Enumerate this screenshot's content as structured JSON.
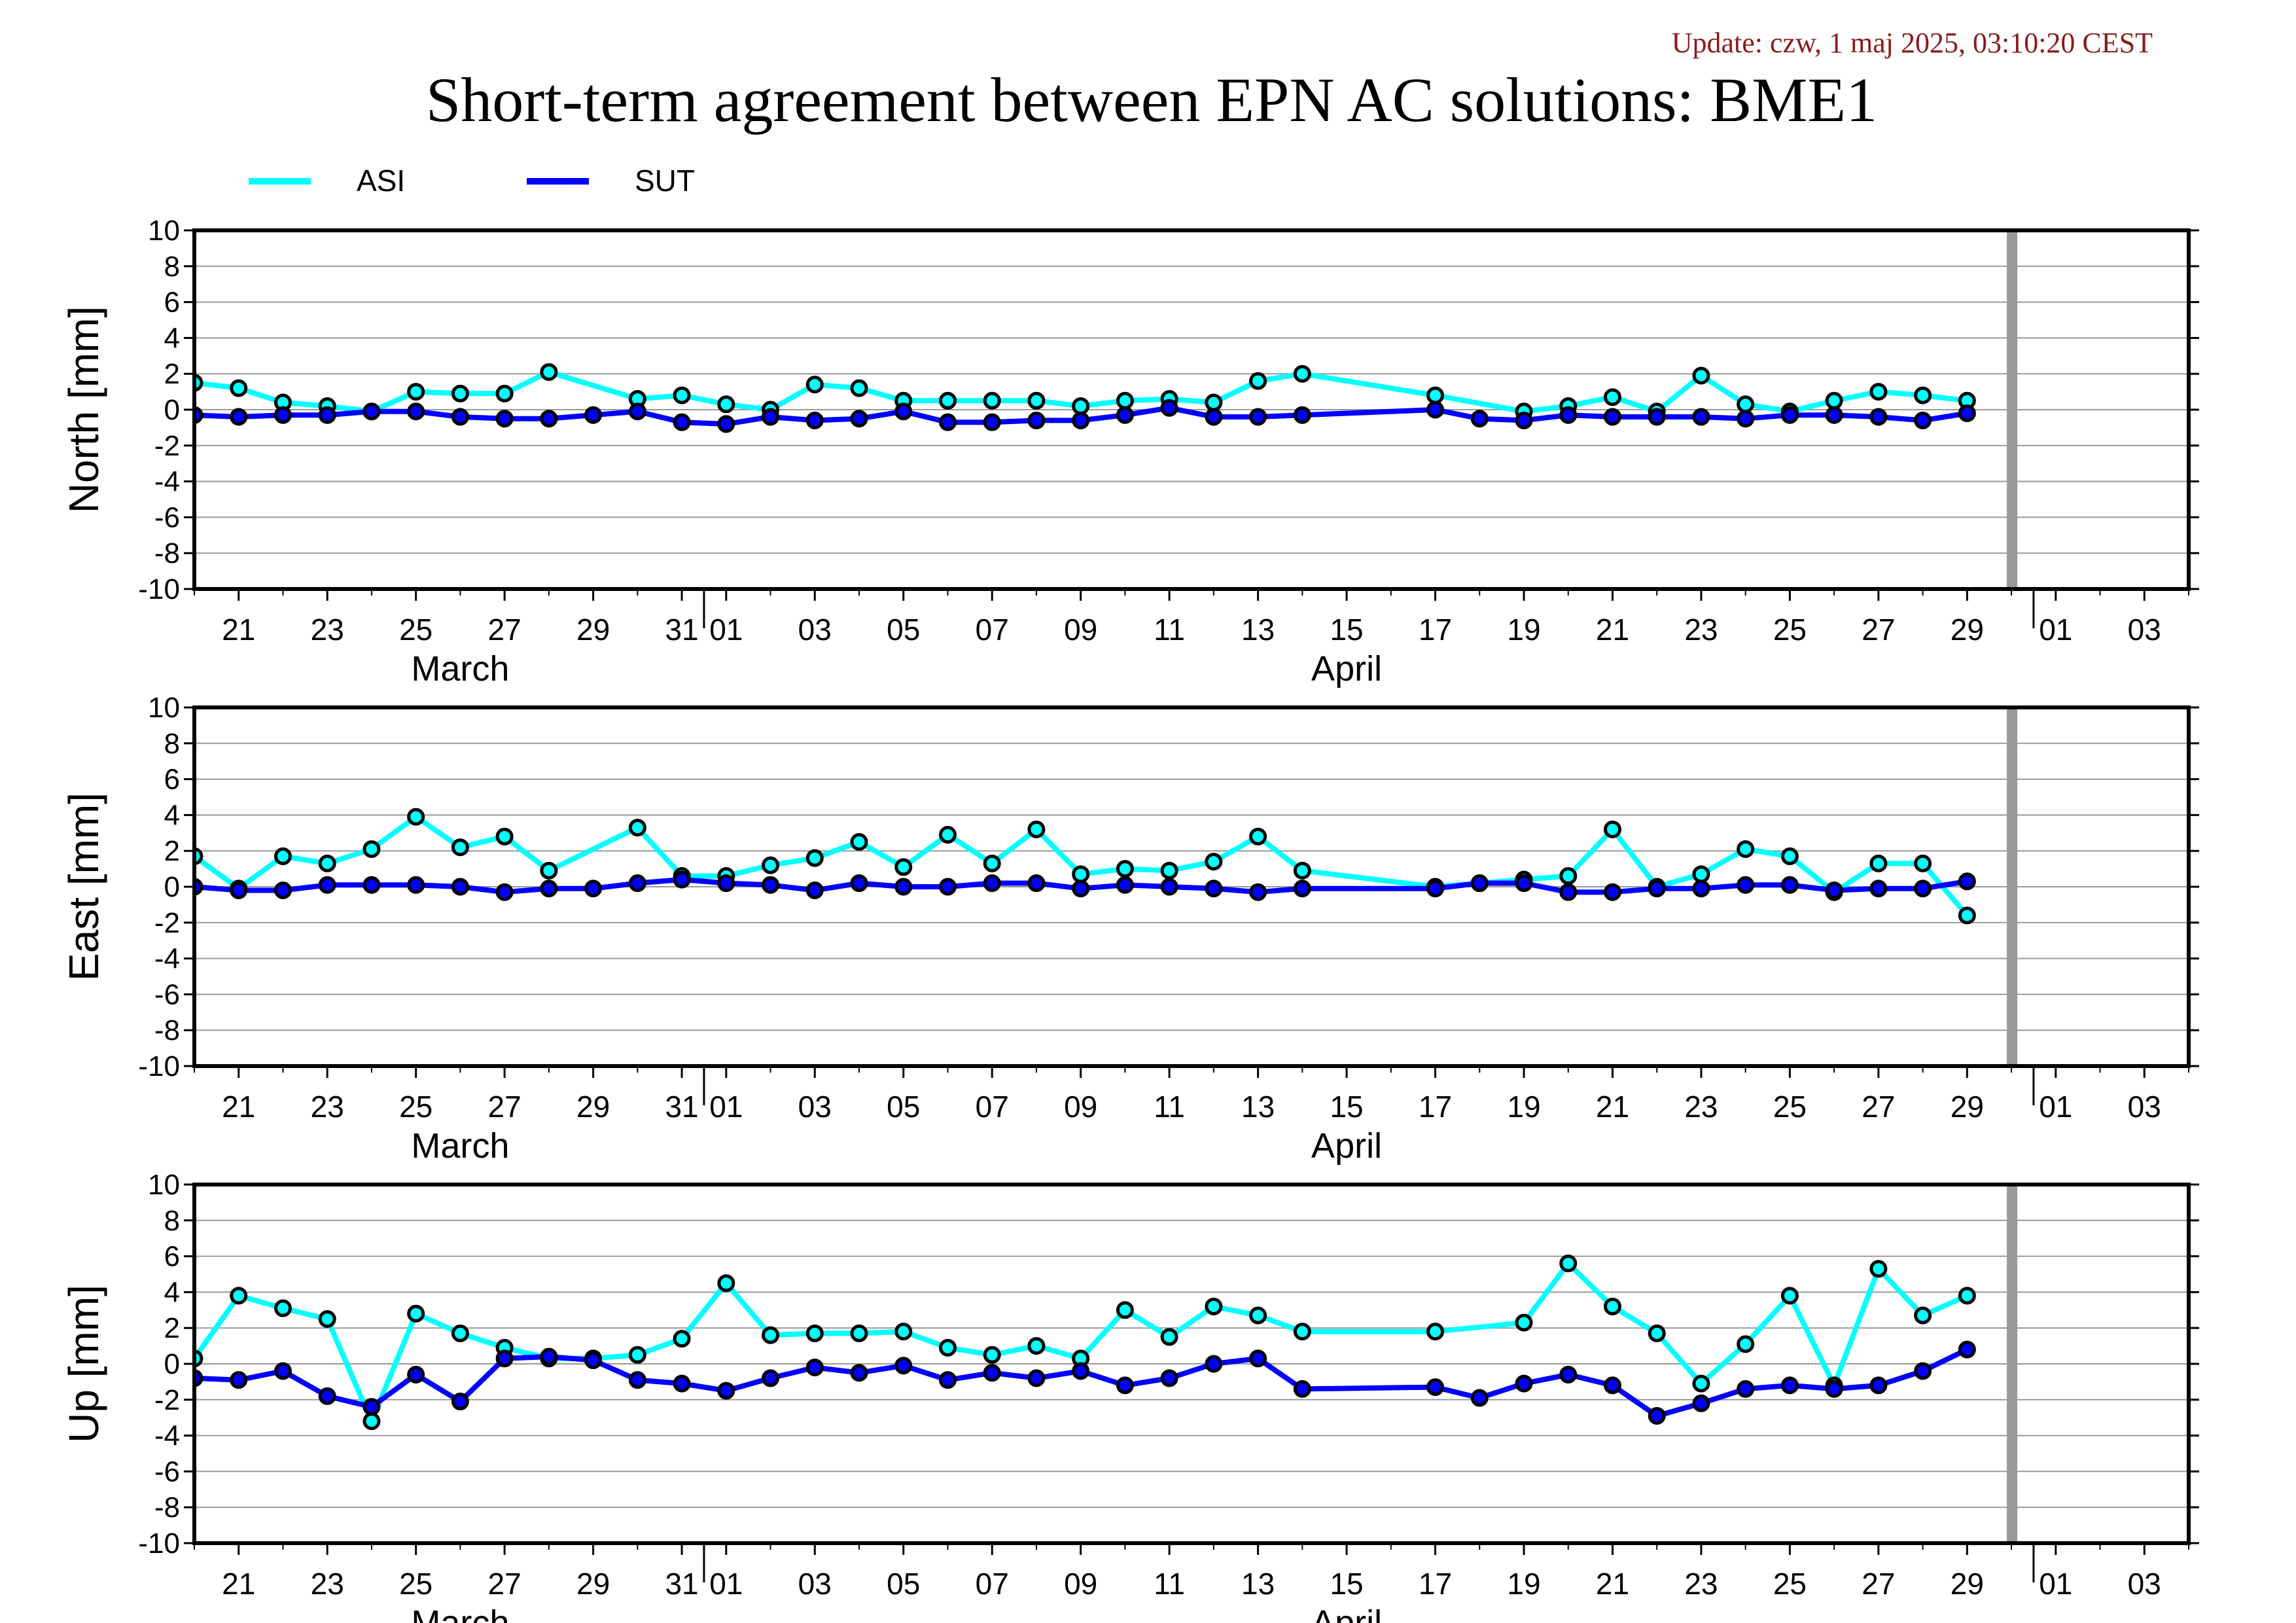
{
  "update_text": "Update: czw, 1 maj 2025, 03:10:20 CEST",
  "title": "Short-term agreement between EPN AC solutions: BME1",
  "legend": [
    {
      "name": "ASI",
      "color": "#00FFFF"
    },
    {
      "name": "SUT",
      "color": "#0000FF"
    }
  ],
  "colors": {
    "marker_edge": "#000000",
    "gap_bar": "#999999",
    "grid": "#999999"
  },
  "x_axis": {
    "tick_labels": [
      "21",
      "23",
      "25",
      "27",
      "29",
      "31",
      "01",
      "03",
      "05",
      "07",
      "09",
      "11",
      "13",
      "15",
      "17",
      "19",
      "21",
      "23",
      "25",
      "27",
      "29",
      "01",
      "03"
    ],
    "month_labels": [
      "March",
      "April"
    ]
  },
  "chart_data": [
    {
      "type": "line",
      "ylabel": "North [mm]",
      "ylim": [
        -10,
        10
      ],
      "yticks": [
        "10",
        "8",
        "6",
        "4",
        "2",
        "0",
        "-2",
        "-4",
        "-6",
        "-8",
        "-10"
      ],
      "xlim": [
        "2025-03-20",
        "2025-05-04"
      ],
      "grid": true,
      "series": [
        {
          "name": "ASI",
          "x": [
            "2025-03-20",
            "2025-03-21",
            "2025-03-22",
            "2025-03-23",
            "2025-03-24",
            "2025-03-25",
            "2025-03-26",
            "2025-03-27",
            "2025-03-28",
            "2025-03-30",
            "2025-03-31",
            "2025-04-01",
            "2025-04-02",
            "2025-04-03",
            "2025-04-04",
            "2025-04-05",
            "2025-04-06",
            "2025-04-07",
            "2025-04-08",
            "2025-04-09",
            "2025-04-10",
            "2025-04-11",
            "2025-04-12",
            "2025-04-13",
            "2025-04-14",
            "2025-04-17",
            "2025-04-19",
            "2025-04-20",
            "2025-04-21",
            "2025-04-22",
            "2025-04-23",
            "2025-04-24",
            "2025-04-25",
            "2025-04-26",
            "2025-04-27",
            "2025-04-28",
            "2025-04-29"
          ],
          "values": [
            1.5,
            1.2,
            0.4,
            0.2,
            -0.1,
            1.0,
            0.9,
            0.9,
            2.1,
            0.6,
            0.8,
            0.3,
            0.0,
            1.4,
            1.2,
            0.5,
            0.5,
            0.5,
            0.5,
            0.2,
            0.5,
            0.6,
            0.4,
            1.6,
            2.0,
            0.8,
            -0.1,
            0.2,
            0.7,
            -0.1,
            1.9,
            0.3,
            -0.1,
            0.5,
            1.0,
            0.8,
            0.5
          ]
        },
        {
          "name": "SUT",
          "x": [
            "2025-03-20",
            "2025-03-21",
            "2025-03-22",
            "2025-03-23",
            "2025-03-24",
            "2025-03-25",
            "2025-03-26",
            "2025-03-27",
            "2025-03-28",
            "2025-03-29",
            "2025-03-30",
            "2025-03-31",
            "2025-04-01",
            "2025-04-02",
            "2025-04-03",
            "2025-04-04",
            "2025-04-05",
            "2025-04-06",
            "2025-04-07",
            "2025-04-08",
            "2025-04-09",
            "2025-04-10",
            "2025-04-11",
            "2025-04-12",
            "2025-04-13",
            "2025-04-14",
            "2025-04-17",
            "2025-04-18",
            "2025-04-19",
            "2025-04-20",
            "2025-04-21",
            "2025-04-22",
            "2025-04-23",
            "2025-04-24",
            "2025-04-25",
            "2025-04-26",
            "2025-04-27",
            "2025-04-28",
            "2025-04-29"
          ],
          "values": [
            -0.3,
            -0.4,
            -0.3,
            -0.3,
            -0.1,
            -0.1,
            -0.4,
            -0.5,
            -0.5,
            -0.3,
            -0.1,
            -0.7,
            -0.8,
            -0.4,
            -0.6,
            -0.5,
            -0.1,
            -0.7,
            -0.7,
            -0.6,
            -0.6,
            -0.3,
            0.1,
            -0.4,
            -0.4,
            -0.3,
            0.0,
            -0.5,
            -0.6,
            -0.3,
            -0.4,
            -0.4,
            -0.4,
            -0.5,
            -0.3,
            -0.3,
            -0.4,
            -0.6,
            -0.2
          ]
        }
      ]
    },
    {
      "type": "line",
      "ylabel": "East [mm]",
      "ylim": [
        -10,
        10
      ],
      "yticks": [
        "10",
        "8",
        "6",
        "4",
        "2",
        "0",
        "-2",
        "-4",
        "-6",
        "-8",
        "-10"
      ],
      "xlim": [
        "2025-03-20",
        "2025-05-04"
      ],
      "grid": true,
      "series": [
        {
          "name": "ASI",
          "x": [
            "2025-03-20",
            "2025-03-21",
            "2025-03-22",
            "2025-03-23",
            "2025-03-24",
            "2025-03-25",
            "2025-03-26",
            "2025-03-27",
            "2025-03-28",
            "2025-03-30",
            "2025-03-31",
            "2025-04-01",
            "2025-04-02",
            "2025-04-03",
            "2025-04-04",
            "2025-04-05",
            "2025-04-06",
            "2025-04-07",
            "2025-04-08",
            "2025-04-09",
            "2025-04-10",
            "2025-04-11",
            "2025-04-12",
            "2025-04-13",
            "2025-04-14",
            "2025-04-17",
            "2025-04-18",
            "2025-04-19",
            "2025-04-20",
            "2025-04-21",
            "2025-04-22",
            "2025-04-23",
            "2025-04-24",
            "2025-04-25",
            "2025-04-26",
            "2025-04-27",
            "2025-04-28",
            "2025-04-29"
          ],
          "values": [
            1.7,
            -0.1,
            1.7,
            1.3,
            2.1,
            3.9,
            2.2,
            2.8,
            0.9,
            3.3,
            0.6,
            0.6,
            1.2,
            1.6,
            2.5,
            1.1,
            2.9,
            1.3,
            3.2,
            0.7,
            1.0,
            0.9,
            1.4,
            2.8,
            0.9,
            0.0,
            0.2,
            0.4,
            0.6,
            3.2,
            0.0,
            0.7,
            2.1,
            1.7,
            -0.3,
            1.3,
            1.3,
            -1.6
          ]
        },
        {
          "name": "SUT",
          "x": [
            "2025-03-20",
            "2025-03-21",
            "2025-03-22",
            "2025-03-23",
            "2025-03-24",
            "2025-03-25",
            "2025-03-26",
            "2025-03-27",
            "2025-03-28",
            "2025-03-29",
            "2025-03-30",
            "2025-03-31",
            "2025-04-01",
            "2025-04-02",
            "2025-04-03",
            "2025-04-04",
            "2025-04-05",
            "2025-04-06",
            "2025-04-07",
            "2025-04-08",
            "2025-04-09",
            "2025-04-10",
            "2025-04-11",
            "2025-04-12",
            "2025-04-13",
            "2025-04-14",
            "2025-04-17",
            "2025-04-18",
            "2025-04-19",
            "2025-04-20",
            "2025-04-21",
            "2025-04-22",
            "2025-04-23",
            "2025-04-24",
            "2025-04-25",
            "2025-04-26",
            "2025-04-27",
            "2025-04-28",
            "2025-04-29"
          ],
          "values": [
            0.0,
            -0.2,
            -0.2,
            0.1,
            0.1,
            0.1,
            0.0,
            -0.3,
            -0.1,
            -0.1,
            0.2,
            0.4,
            0.2,
            0.1,
            -0.2,
            0.2,
            0.0,
            0.0,
            0.2,
            0.2,
            -0.1,
            0.1,
            0.0,
            -0.1,
            -0.3,
            -0.1,
            -0.1,
            0.2,
            0.2,
            -0.3,
            -0.3,
            -0.1,
            -0.1,
            0.1,
            0.1,
            -0.2,
            -0.1,
            -0.1,
            0.3
          ]
        }
      ]
    },
    {
      "type": "line",
      "ylabel": "Up [mm]",
      "ylim": [
        -10,
        10
      ],
      "yticks": [
        "10",
        "8",
        "6",
        "4",
        "2",
        "0",
        "-2",
        "-4",
        "-6",
        "-8",
        "-10"
      ],
      "xlim": [
        "2025-03-20",
        "2025-05-04"
      ],
      "grid": true,
      "series": [
        {
          "name": "ASI",
          "x": [
            "2025-03-20",
            "2025-03-21",
            "2025-03-22",
            "2025-03-23",
            "2025-03-24",
            "2025-03-25",
            "2025-03-26",
            "2025-03-27",
            "2025-03-28",
            "2025-03-29",
            "2025-03-30",
            "2025-03-31",
            "2025-04-01",
            "2025-04-02",
            "2025-04-03",
            "2025-04-04",
            "2025-04-05",
            "2025-04-06",
            "2025-04-07",
            "2025-04-08",
            "2025-04-09",
            "2025-04-10",
            "2025-04-11",
            "2025-04-12",
            "2025-04-13",
            "2025-04-14",
            "2025-04-17",
            "2025-04-19",
            "2025-04-20",
            "2025-04-21",
            "2025-04-22",
            "2025-04-23",
            "2025-04-24",
            "2025-04-25",
            "2025-04-26",
            "2025-04-27",
            "2025-04-28",
            "2025-04-29"
          ],
          "values": [
            0.3,
            3.8,
            3.1,
            2.5,
            -3.2,
            2.8,
            1.7,
            0.9,
            0.3,
            0.3,
            0.5,
            1.4,
            4.5,
            1.6,
            1.7,
            1.7,
            1.8,
            0.9,
            0.5,
            1.0,
            0.3,
            3.0,
            1.5,
            3.2,
            2.7,
            1.8,
            1.8,
            2.3,
            5.6,
            3.2,
            1.7,
            -1.1,
            1.1,
            3.8,
            -1.2,
            5.3,
            2.7,
            3.8
          ]
        },
        {
          "name": "SUT",
          "x": [
            "2025-03-20",
            "2025-03-21",
            "2025-03-22",
            "2025-03-23",
            "2025-03-24",
            "2025-03-25",
            "2025-03-26",
            "2025-03-27",
            "2025-03-28",
            "2025-03-29",
            "2025-03-30",
            "2025-03-31",
            "2025-04-01",
            "2025-04-02",
            "2025-04-03",
            "2025-04-04",
            "2025-04-05",
            "2025-04-06",
            "2025-04-07",
            "2025-04-08",
            "2025-04-09",
            "2025-04-10",
            "2025-04-11",
            "2025-04-12",
            "2025-04-13",
            "2025-04-14",
            "2025-04-17",
            "2025-04-18",
            "2025-04-19",
            "2025-04-20",
            "2025-04-21",
            "2025-04-22",
            "2025-04-23",
            "2025-04-24",
            "2025-04-25",
            "2025-04-26",
            "2025-04-27",
            "2025-04-28",
            "2025-04-29"
          ],
          "values": [
            -0.8,
            -0.9,
            -0.4,
            -1.8,
            -2.4,
            -0.6,
            -2.1,
            0.3,
            0.4,
            0.2,
            -0.9,
            -1.1,
            -1.5,
            -0.8,
            -0.2,
            -0.5,
            -0.1,
            -0.9,
            -0.5,
            -0.8,
            -0.4,
            -1.2,
            -0.8,
            0.0,
            0.3,
            -1.4,
            -1.3,
            -1.9,
            -1.1,
            -0.6,
            -1.2,
            -2.9,
            -2.2,
            -1.4,
            -1.2,
            -1.4,
            -1.2,
            -0.4,
            0.8
          ]
        }
      ]
    }
  ]
}
